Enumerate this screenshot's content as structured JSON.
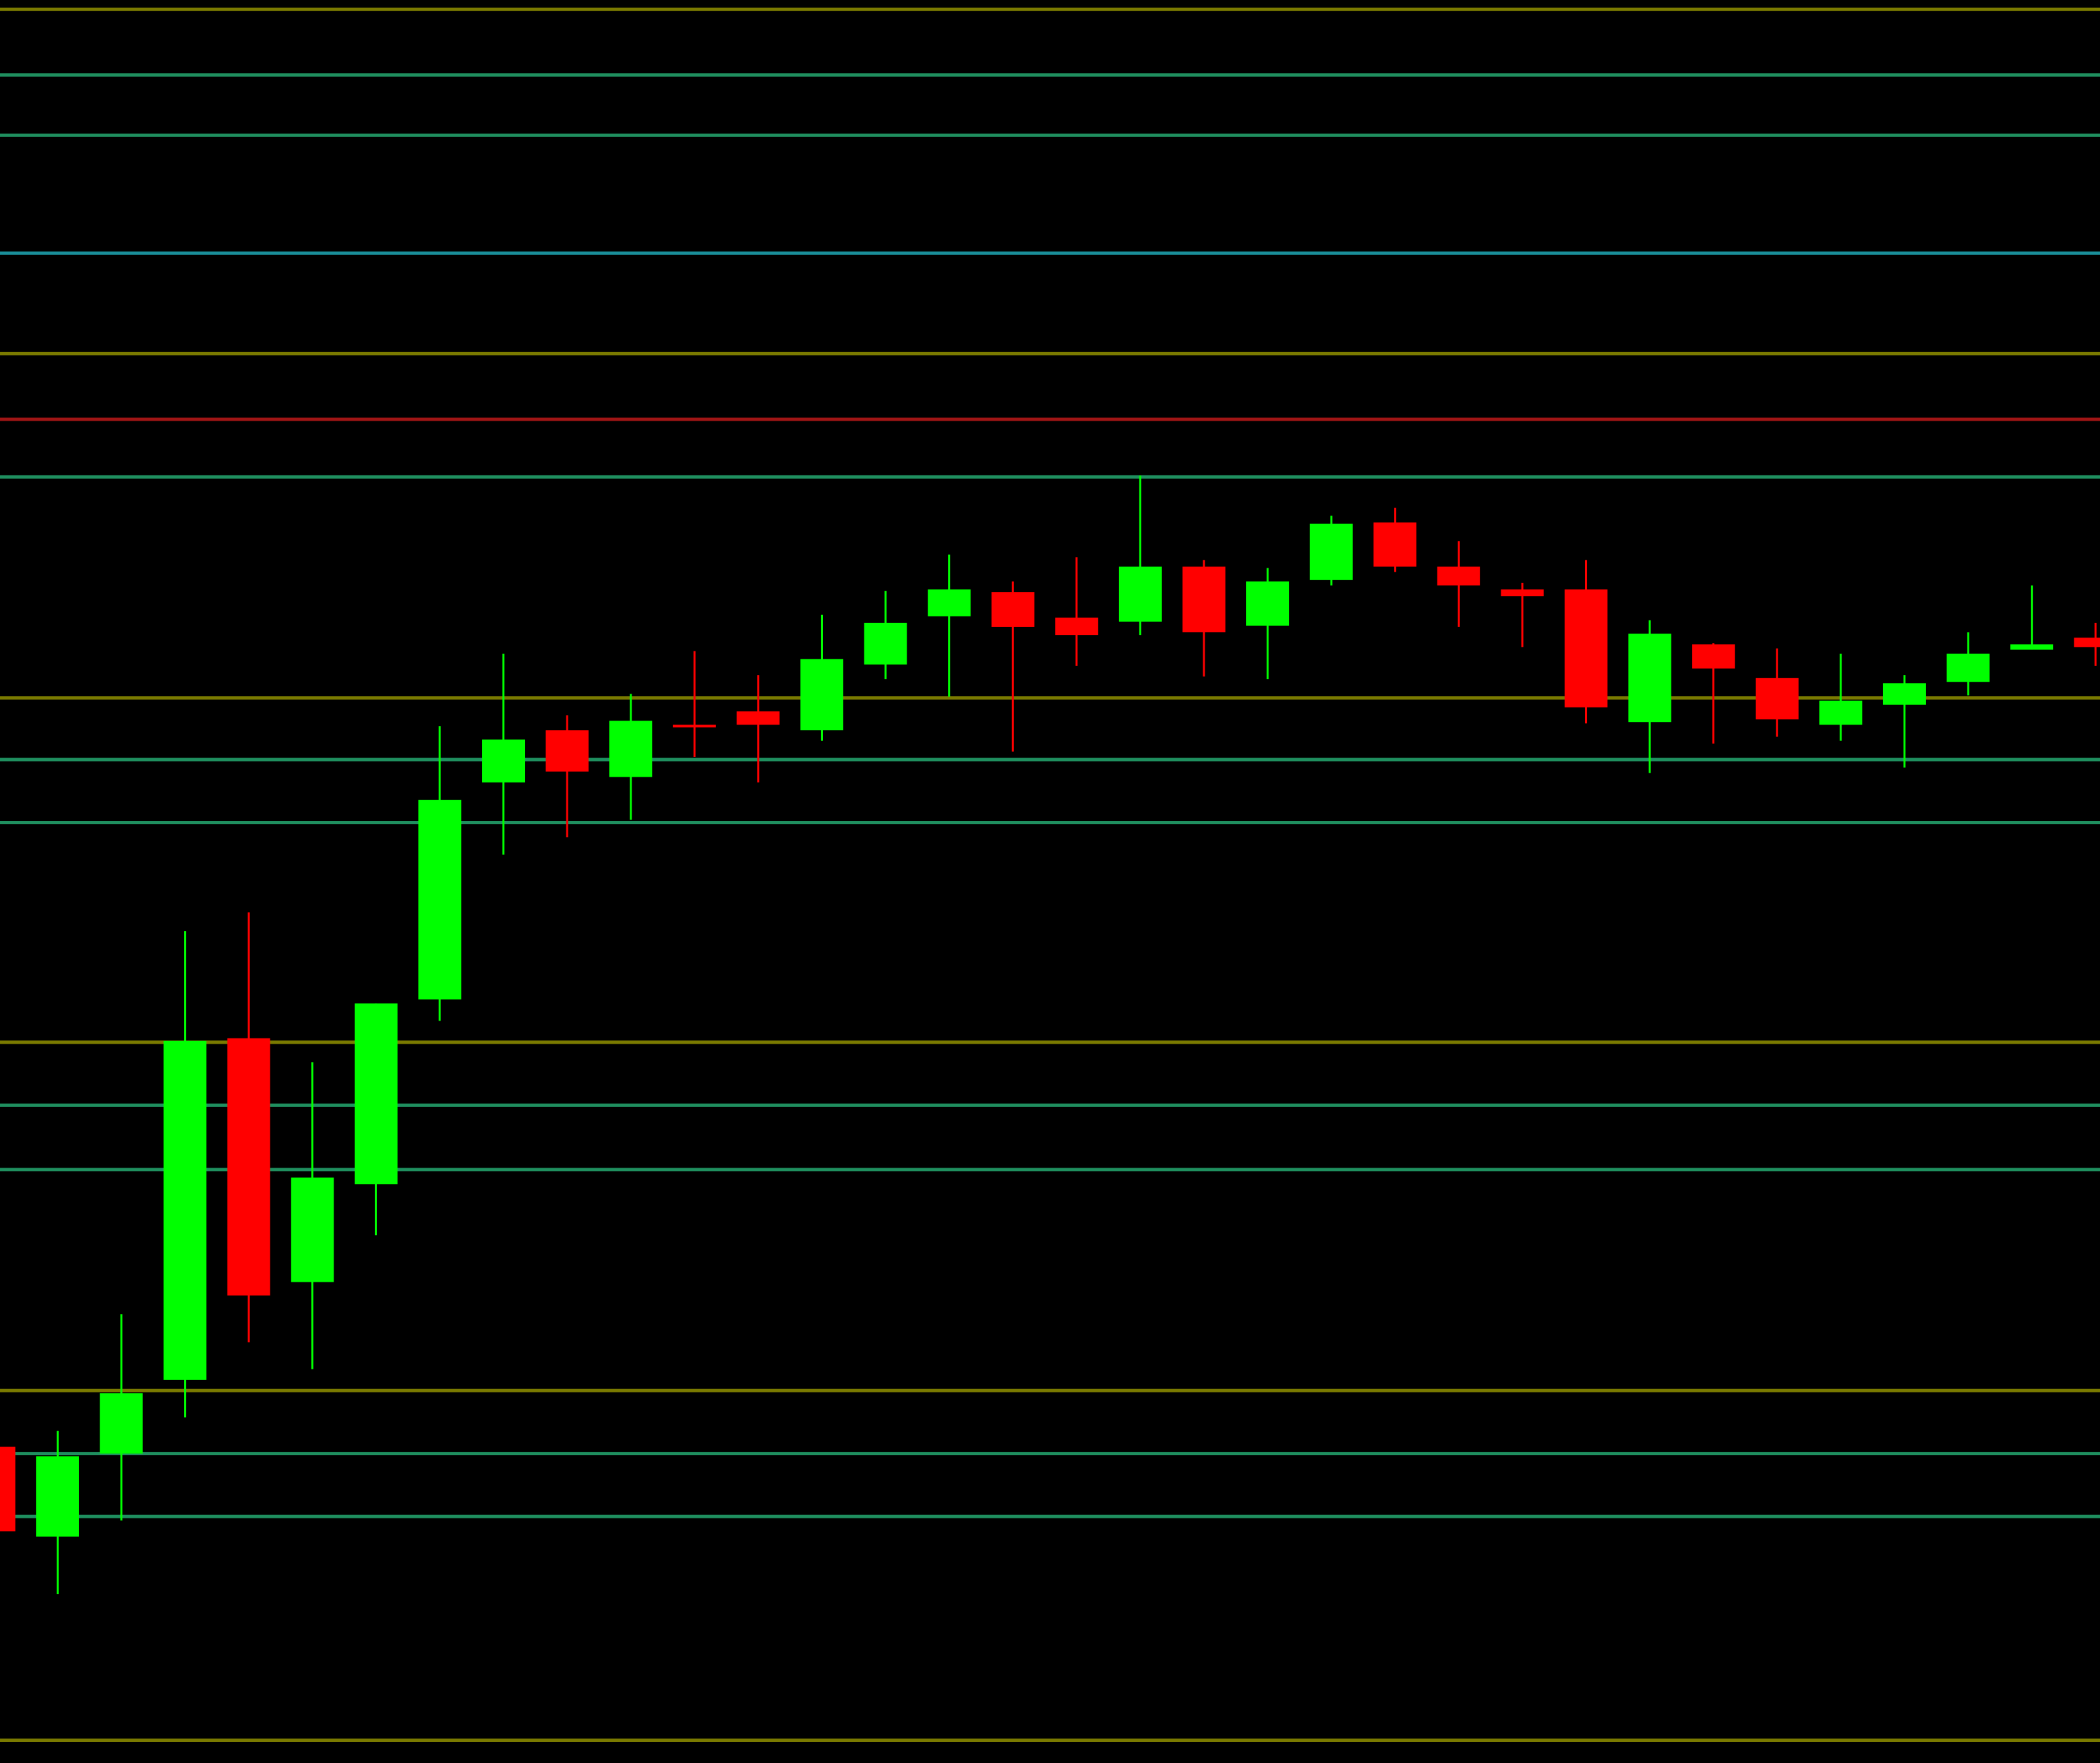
{
  "chart_data": {
    "type": "candlestick",
    "categories": [
      null,
      null,
      null,
      null,
      null,
      null,
      null,
      null,
      null,
      null,
      null,
      null,
      null,
      null,
      null,
      null,
      null,
      null,
      null,
      null,
      null,
      null,
      null,
      null,
      null,
      null,
      null,
      null,
      null,
      null,
      null,
      null,
      null,
      null
    ],
    "open": [
      236,
      169,
      231,
      286,
      541,
      359,
      432,
      570,
      732,
      771,
      736,
      775,
      785,
      771,
      820,
      856,
      874,
      855,
      852,
      893,
      849,
      883,
      926,
      893,
      876,
      876,
      777,
      835,
      810,
      775,
      790,
      807,
      831,
      840
    ],
    "high": [
      238,
      248,
      335,
      621,
      635,
      523,
      567,
      774,
      828,
      782,
      798,
      830,
      812,
      857,
      875,
      902,
      882,
      900,
      961,
      898,
      892,
      931,
      937,
      912,
      881,
      898,
      853,
      836,
      832,
      828,
      812,
      844,
      879,
      851
    ],
    "low": [
      173,
      126,
      181,
      258,
      314,
      294,
      394,
      554,
      678,
      691,
      704,
      751,
      732,
      763,
      809,
      796,
      755,
      819,
      842,
      811,
      809,
      879,
      889,
      848,
      833,
      776,
      739,
      761,
      766,
      763,
      743,
      797,
      831,
      819
    ],
    "close": [
      173,
      229,
      276,
      539,
      349,
      437,
      567,
      719,
      764,
      740,
      778,
      773,
      775,
      824,
      851,
      876,
      848,
      842,
      893,
      844,
      882,
      925,
      893,
      879,
      871,
      788,
      843,
      817,
      779,
      793,
      806,
      828,
      835,
      833
    ],
    "up_color": "#00ff00",
    "down_color": "#ff0000",
    "ylim": [
      0,
      1316
    ],
    "levels": [
      {
        "value": 1309,
        "color": "#7a7a00"
      },
      {
        "value": 1260,
        "color": "#1f8f5f"
      },
      {
        "value": 1215,
        "color": "#1f8f5f"
      },
      {
        "value": 1127,
        "color": "#1a8f9a"
      },
      {
        "value": 1052,
        "color": "#7a7a00"
      },
      {
        "value": 1003,
        "color": "#a01515"
      },
      {
        "value": 960,
        "color": "#1f8f5f"
      },
      {
        "value": 795,
        "color": "#7a7a00"
      },
      {
        "value": 749,
        "color": "#1f8f5f"
      },
      {
        "value": 702,
        "color": "#1f8f5f"
      },
      {
        "value": 538,
        "color": "#7a7a00"
      },
      {
        "value": 491,
        "color": "#1f8f5f"
      },
      {
        "value": 443,
        "color": "#1f8f5f"
      },
      {
        "value": 278,
        "color": "#7a7a00"
      },
      {
        "value": 231,
        "color": "#1f8f5f"
      },
      {
        "value": 184,
        "color": "#1f8f5f"
      },
      {
        "value": 17,
        "color": "#7a7a00"
      }
    ]
  }
}
